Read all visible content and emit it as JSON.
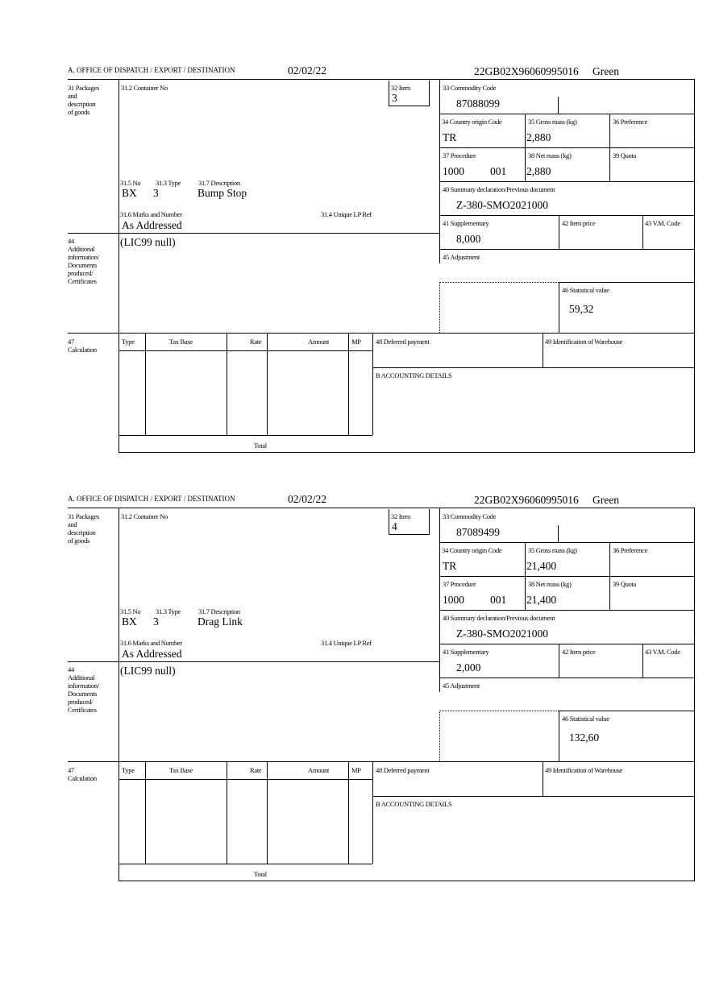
{
  "labels": {
    "office": "A. OFFICE OF DISPATCH / EXPORT / DESTINATION",
    "b31": [
      "31 Packages",
      "and",
      "description",
      "of goods"
    ],
    "b31_2": "31.2 Container No",
    "b32": "32 Item",
    "b33": "33 Commodity Code",
    "b34": "34 Country origin Code",
    "b35": "35 Gross mass (kg)",
    "b36": "36 Preference",
    "b37": "37 Procedure",
    "b38": "38 Net mass (kg)",
    "b39": "39 Quota",
    "b40": "40 Summary declaration/Previous document",
    "b41": "41 Supplementary",
    "b42": "42 Item price",
    "b43": "43 V.M. Code",
    "b45": "45 Adjustment",
    "b46": "46 Statistical value",
    "b31_5": "31.5 No",
    "b31_3": "31.3 Type",
    "b31_7": "31.7 Description",
    "b31_6": "31.6 Marks and Number",
    "b31_4": "31.4 Unique LP Ref",
    "b44": [
      "44",
      "Additional",
      "information/",
      "Documents",
      "produced/",
      "Certificates"
    ],
    "b47": [
      "47",
      "Calculation"
    ],
    "calc_headers": [
      "Type",
      "Tax Base",
      "Rate",
      "Amount",
      "MP"
    ],
    "total": "Total",
    "b48": "48 Deferred payment",
    "b49": "49 Identification of Warehouse",
    "accounting": "B ACCOUNTING DETAILS"
  },
  "forms": [
    {
      "date": "02/02/22",
      "reference": "22GB02X96060995016",
      "route": "Green",
      "item": "3",
      "commodity_code": "87088099",
      "country_origin": "TR",
      "gross_mass": "2,880",
      "procedure": "1000",
      "procedure_additional": "001",
      "net_mass": "2,880",
      "previous_document": "Z-380-SMO2021000",
      "supplementary": "8,000",
      "statistical_value": "59,32",
      "packages_no": "BX",
      "packages_type": "3",
      "description": "Bump Stop",
      "marks": "As Addressed",
      "additional_info": "(LIC99 null)"
    },
    {
      "date": "02/02/22",
      "reference": "22GB02X96060995016",
      "route": "Green",
      "item": "4",
      "commodity_code": "87089499",
      "country_origin": "TR",
      "gross_mass": "21,400",
      "procedure": "1000",
      "procedure_additional": "001",
      "net_mass": "21,400",
      "previous_document": "Z-380-SMO2021000",
      "supplementary": "2,000",
      "statistical_value": "132,60",
      "packages_no": "BX",
      "packages_type": "3",
      "description": "Drag Link",
      "marks": "As Addressed",
      "additional_info": "(LIC99 null)"
    }
  ]
}
